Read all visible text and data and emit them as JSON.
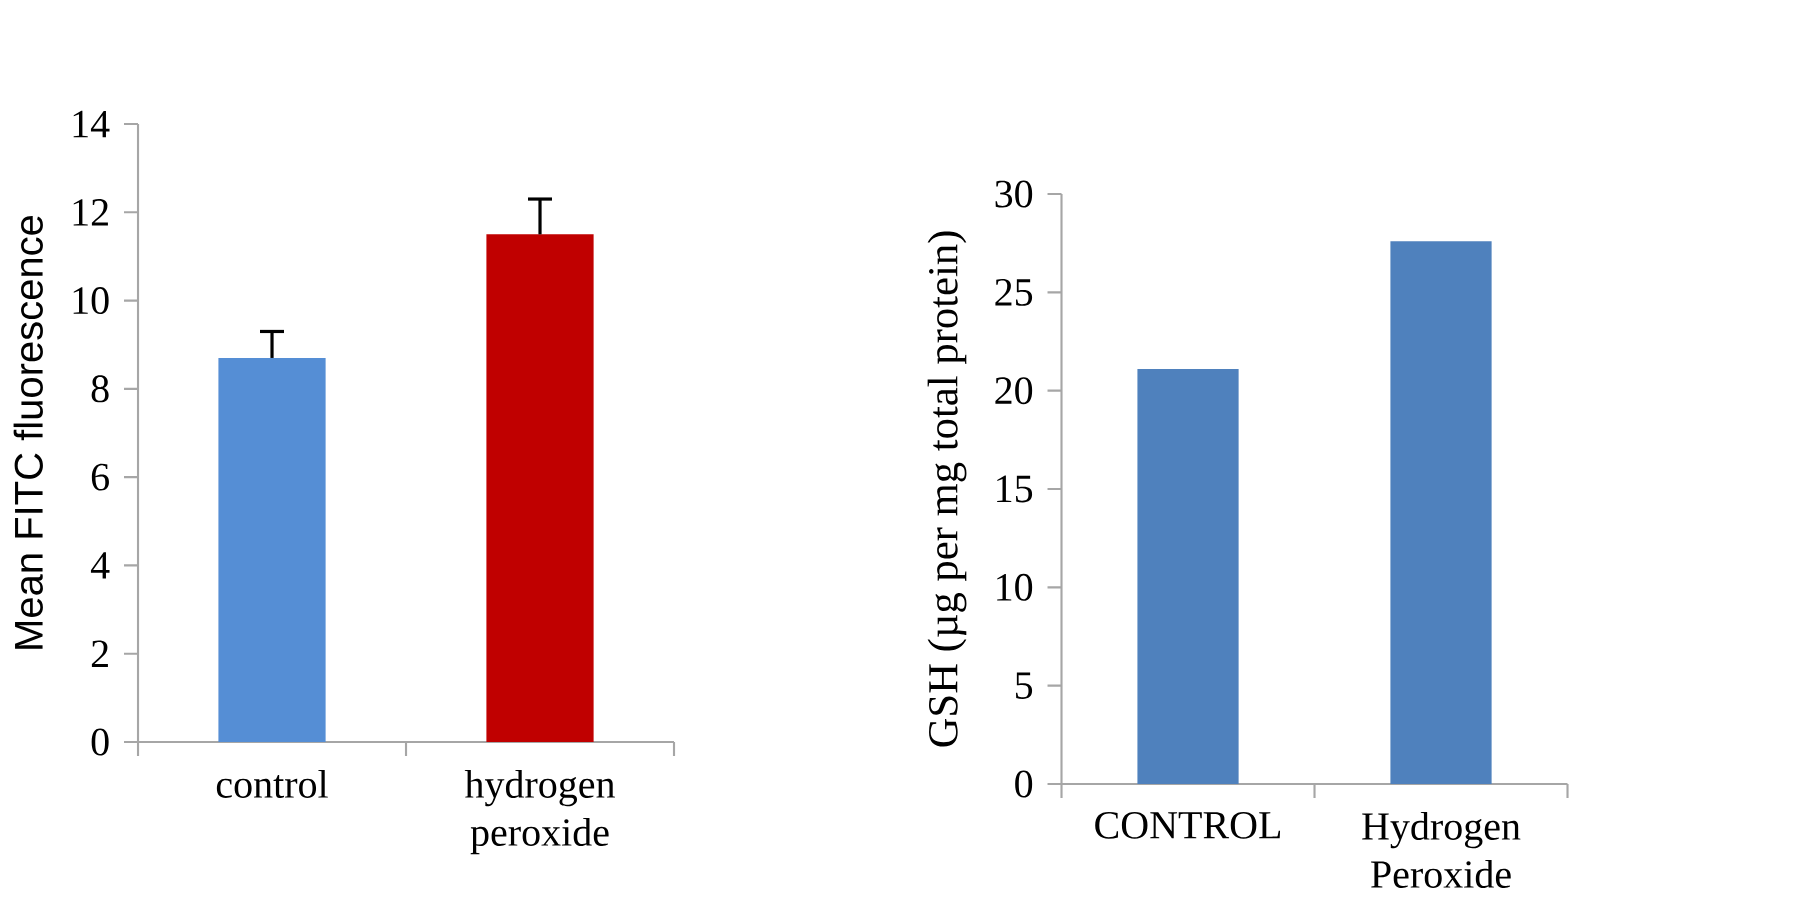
{
  "chart_data": [
    {
      "type": "bar",
      "ylabel": "Mean FITC fluorescence",
      "categories": [
        "control",
        "hydrogen peroxide"
      ],
      "values": [
        8.7,
        11.5
      ],
      "colors": [
        "#558ed5",
        "#c00000"
      ],
      "errors": [
        [
          8.7,
          9.3
        ],
        [
          11.5,
          12.3
        ]
      ],
      "ylim": [
        0,
        14
      ],
      "yticks": [
        0,
        2,
        4,
        6,
        8,
        10,
        12,
        14
      ]
    },
    {
      "type": "bar",
      "ylabel": "GSH (µg per mg total protein)",
      "categories": [
        "CONTROL",
        "Hydrogen Peroxide"
      ],
      "values": [
        21.1,
        27.6
      ],
      "colors": [
        "#4f81bd",
        "#4f81bd"
      ],
      "ylim": [
        0,
        30
      ],
      "yticks": [
        0,
        5,
        10,
        15,
        20,
        25,
        30
      ]
    }
  ]
}
